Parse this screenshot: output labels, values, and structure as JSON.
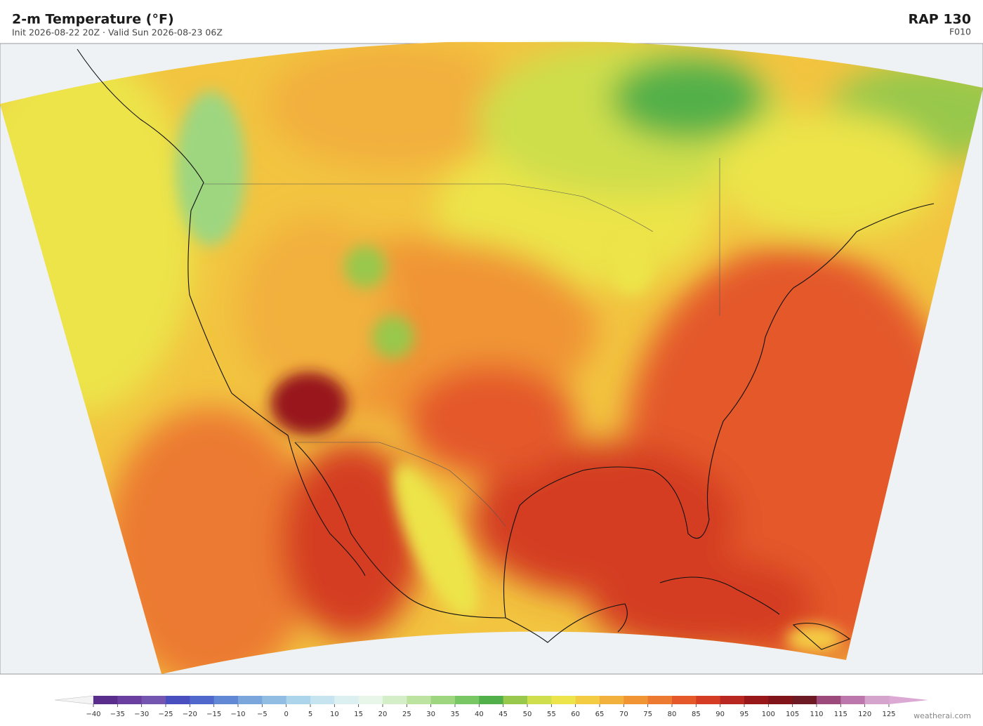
{
  "header": {
    "title": "2-m Temperature  (°F)",
    "subtitle": "Init 2026-08-22 20Z   ·   Valid Sun 2026-08-23 06Z",
    "model": "RAP  130",
    "forecast_hour": "F010"
  },
  "colorbar": {
    "ticks": [
      {
        "value": -40,
        "label": "−40"
      },
      {
        "value": -35,
        "label": "−35"
      },
      {
        "value": -30,
        "label": "−30"
      },
      {
        "value": -25,
        "label": "−25"
      },
      {
        "value": -20,
        "label": "−20"
      },
      {
        "value": -15,
        "label": "−15"
      },
      {
        "value": -10,
        "label": "−10"
      },
      {
        "value": -5,
        "label": "−5"
      },
      0,
      5,
      10,
      15,
      20,
      25,
      30,
      35,
      40,
      45,
      50,
      55,
      60,
      65,
      70,
      75,
      80,
      85,
      90,
      95,
      100,
      105,
      110,
      115,
      120,
      125
    ],
    "colors": [
      "#5a2d8c",
      "#6b3fa0",
      "#7455b0",
      "#4a4fc0",
      "#5068cc",
      "#6088d4",
      "#7aa6dc",
      "#92bde2",
      "#acd4ea",
      "#c6e4f0",
      "#dcf0f2",
      "#e8f6ea",
      "#d4eec8",
      "#bce4a0",
      "#9ed680",
      "#78c664",
      "#52b04a",
      "#98c84c",
      "#cede4c",
      "#ece44a",
      "#f4cc44",
      "#f2b03c",
      "#f09434",
      "#ec7a30",
      "#e4582a",
      "#d43c24",
      "#b82820",
      "#98181a",
      "#801418",
      "#6e1a24",
      "#9c4a7c",
      "#bc78ac",
      "#d4a4cc"
    ],
    "under_color": "#f4f4f4",
    "over_color": "#dca8d4"
  },
  "credit": "weatherai.com"
}
